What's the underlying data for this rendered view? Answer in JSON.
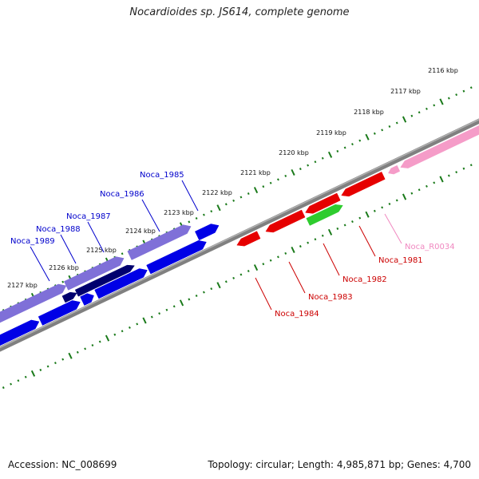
{
  "title": "Nocardioides sp. JS614, complete genome",
  "accession": "Accession: NC_008699",
  "summary": "Topology: circular; Length: 4,985,871 bp; Genes: 4,700",
  "scale_labels": [
    "2116 kbp",
    "2117 kbp",
    "2118 kbp",
    "2119 kbp",
    "2120 kbp",
    "2121 kbp",
    "2122 kbp",
    "2123 kbp",
    "2124 kbp",
    "2125 kbp",
    "2126 kbp",
    "2127 kbp"
  ],
  "colors": {
    "backbone": "#808080",
    "tick": "#1a7a1a",
    "blue": "#0000e6",
    "lavender": "#7f70d8",
    "navy": "#00006e",
    "red": "#e60000",
    "green": "#2ecc2e",
    "pink": "#f59cc8"
  },
  "gene_labels": [
    {
      "name": "Noca_1985",
      "color": "#0000cc"
    },
    {
      "name": "Noca_1986",
      "color": "#0000cc"
    },
    {
      "name": "Noca_1987",
      "color": "#0000cc"
    },
    {
      "name": "Noca_1988",
      "color": "#0000cc"
    },
    {
      "name": "Noca_1989",
      "color": "#0000cc"
    },
    {
      "name": "Noca_R0034",
      "color": "#f088c0"
    },
    {
      "name": "Noca_1981",
      "color": "#cc0000"
    },
    {
      "name": "Noca_1982",
      "color": "#cc0000"
    },
    {
      "name": "Noca_1983",
      "color": "#cc0000"
    },
    {
      "name": "Noca_1984",
      "color": "#cc0000"
    }
  ]
}
